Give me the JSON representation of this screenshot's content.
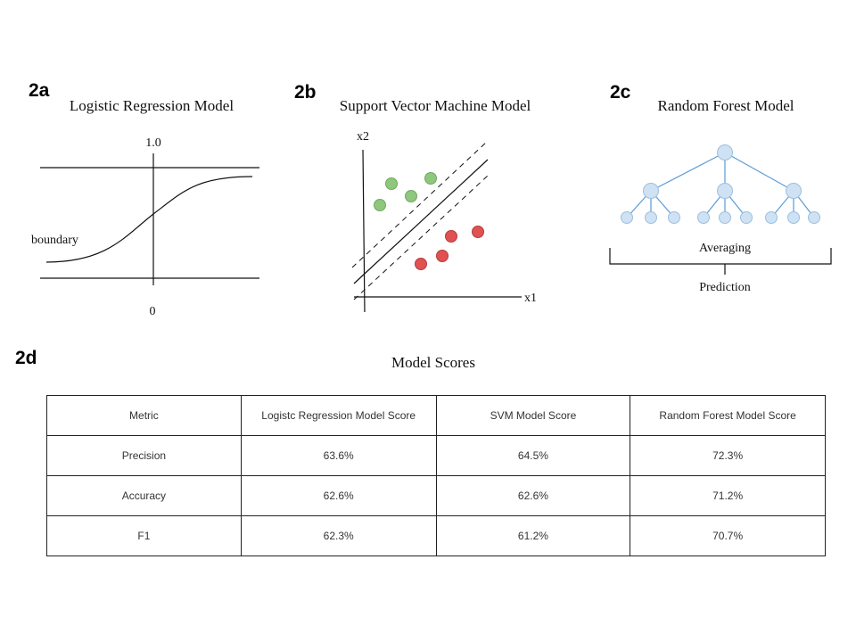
{
  "panels": {
    "a": {
      "label": "2a",
      "title": "Logistic Regression Model",
      "top_value": "1.0",
      "bottom_value": "0",
      "boundary_label": "boundary"
    },
    "b": {
      "label": "2b",
      "title": "Support Vector Machine Model",
      "x_axis": "x1",
      "y_axis": "x2",
      "class_colors": {
        "green": "#8fc77e",
        "red": "#e05252"
      }
    },
    "c": {
      "label": "2c",
      "title": "Random Forest Model",
      "averaging_label": "Averaging",
      "prediction_label": "Prediction",
      "node_color": "#cfe2f3",
      "edge_color": "#5b9bd5"
    },
    "d": {
      "label": "2d",
      "title": "Model Scores",
      "headers": [
        "Metric",
        "Logistc Regression Model Score",
        "SVM Model Score",
        "Random Forest Model Score"
      ],
      "rows": [
        [
          "Precision",
          "63.6%",
          "64.5%",
          "72.3%"
        ],
        [
          "Accuracy",
          "62.6%",
          "62.6%",
          "71.2%"
        ],
        [
          "F1",
          "62.3%",
          "61.2%",
          "70.7%"
        ]
      ]
    }
  }
}
